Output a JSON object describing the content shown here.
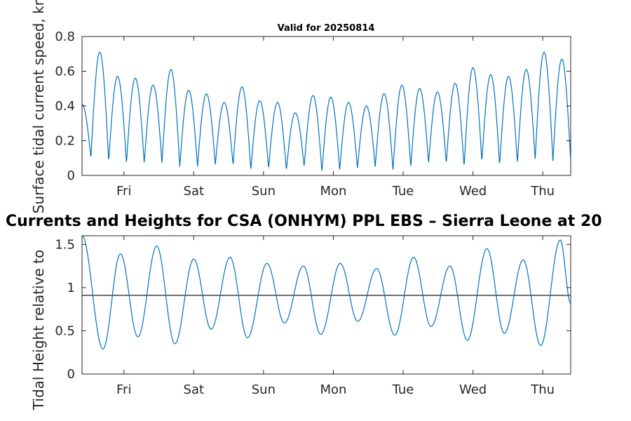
{
  "chart_data": [
    {
      "type": "line",
      "title": "Valid for 20250814",
      "ylabel": "Surface tidal current speed, kn",
      "ylim": [
        0,
        0.8
      ],
      "yticks": [
        "0",
        "0.2",
        "0.4",
        "0.6",
        "0.8"
      ],
      "xtick_labels": [
        "Fri",
        "Sat",
        "Sun",
        "Mon",
        "Tue",
        "Wed",
        "Thu"
      ],
      "xlim": [
        0,
        7
      ],
      "xtick_positions": [
        0.6,
        1.6,
        2.6,
        3.6,
        4.6,
        5.6,
        6.6
      ],
      "series": [
        {
          "color": "#0072BD",
          "peaks": [
            0.41,
            0.71,
            0.57,
            0.56,
            0.52,
            0.61,
            0.49,
            0.47,
            0.42,
            0.51,
            0.43,
            0.42,
            0.36,
            0.46,
            0.45,
            0.42,
            0.4,
            0.47,
            0.52,
            0.5,
            0.48,
            0.53,
            0.62,
            0.58,
            0.57,
            0.61,
            0.71,
            0.67
          ],
          "troughs": [
            0.1,
            0.08,
            0.07,
            0.07,
            0.07,
            0.05,
            0.05,
            0.06,
            0.06,
            0.03,
            0.04,
            0.03,
            0.05,
            0.02,
            0.03,
            0.04,
            0.05,
            0.03,
            0.05,
            0.07,
            0.07,
            0.05,
            0.08,
            0.06,
            0.07,
            0.09,
            0.08
          ]
        }
      ]
    },
    {
      "type": "line",
      "title": "Currents and Heights for CSA (ONHYM) PPL EBS  – Sierra Leone at 20",
      "ylabel": "Tidal Height relative to ",
      "ylim": [
        0,
        1.6
      ],
      "yticks": [
        "0",
        "0.5",
        "1",
        "1.5"
      ],
      "xtick_labels": [
        "Fri",
        "Sat",
        "Sun",
        "Mon",
        "Tue",
        "Wed",
        "Thu"
      ],
      "xlim": [
        0,
        7
      ],
      "xtick_positions": [
        0.6,
        1.6,
        2.6,
        3.6,
        4.6,
        5.6,
        6.6
      ],
      "reference_line": 0.91,
      "series": [
        {
          "color": "#0072BD",
          "extrema": [
            [
              0.0,
              1.6
            ],
            [
              0.3,
              0.29
            ],
            [
              0.55,
              1.39
            ],
            [
              0.8,
              0.43
            ],
            [
              1.07,
              1.48
            ],
            [
              1.33,
              0.35
            ],
            [
              1.6,
              1.33
            ],
            [
              1.85,
              0.52
            ],
            [
              2.12,
              1.35
            ],
            [
              2.37,
              0.42
            ],
            [
              2.65,
              1.28
            ],
            [
              2.9,
              0.59
            ],
            [
              3.17,
              1.25
            ],
            [
              3.42,
              0.46
            ],
            [
              3.7,
              1.28
            ],
            [
              3.95,
              0.61
            ],
            [
              4.22,
              1.22
            ],
            [
              4.48,
              0.45
            ],
            [
              4.75,
              1.35
            ],
            [
              5.0,
              0.55
            ],
            [
              5.27,
              1.25
            ],
            [
              5.52,
              0.39
            ],
            [
              5.8,
              1.45
            ],
            [
              6.05,
              0.47
            ],
            [
              6.32,
              1.32
            ],
            [
              6.57,
              0.33
            ],
            [
              6.85,
              1.55
            ],
            [
              7.0,
              0.82
            ]
          ]
        }
      ]
    }
  ]
}
